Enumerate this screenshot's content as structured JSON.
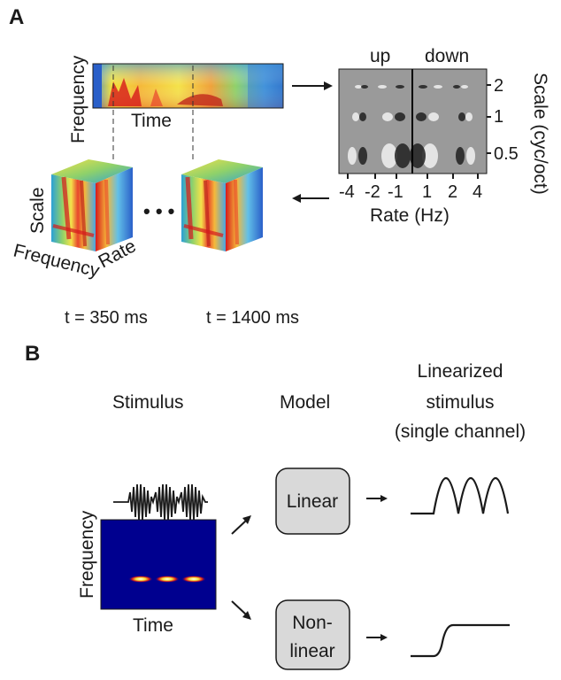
{
  "panel_a": {
    "letter": "A",
    "spectrogram": {
      "ylabel": "Frequency",
      "xlabel": "Time"
    },
    "filter_bank": {
      "up_label": "up",
      "down_label": "down",
      "scale_ticks": [
        "2",
        "1",
        "0.5"
      ],
      "scale_axis": "Scale (cyc/oct)",
      "rate_ticks": [
        "-4",
        "-2",
        "-1",
        "1",
        "2",
        "4"
      ],
      "rate_axis": "Rate (Hz)"
    },
    "cube": {
      "scale": "Scale",
      "frequency": "Frequency",
      "rate": "Rate",
      "ellipsis": "• • •"
    },
    "time_label_1": "t = 350 ms",
    "time_label_2": "t = 1400 ms"
  },
  "panel_b": {
    "letter": "B",
    "stimulus_title": "Stimulus",
    "model_title": "Model",
    "lin_title_1": "Linearized",
    "lin_title_2": "stimulus",
    "lin_title_3": "(single channel)",
    "stim_ylabel": "Frequency",
    "stim_xlabel": "Time",
    "linear_box": "Linear",
    "nonlinear_box_1": "Non-",
    "nonlinear_box_2": "linear"
  },
  "colors": {
    "jet_dark_blue": "#00008f",
    "jet_red": "#d7191c",
    "jet_yellow": "#f2e33a",
    "box_fill": "#d9d9d9",
    "filter_gray": "#9a9a9a"
  }
}
